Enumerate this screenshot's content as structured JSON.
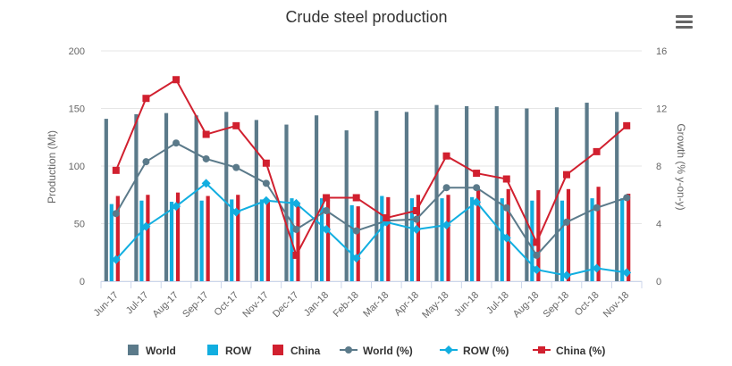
{
  "chart_data": {
    "type": "bar",
    "title": "Crude steel production",
    "categories": [
      "Jun-17",
      "Jul-17",
      "Aug-17",
      "Sep-17",
      "Oct-17",
      "Nov-17",
      "Dec-17",
      "Jan-18",
      "Feb-18",
      "Mar-18",
      "Apr-18",
      "May-18",
      "Jun-18",
      "Jul-18",
      "Aug-18",
      "Sep-18",
      "Oct-18",
      "Nov-18"
    ],
    "ylabel": "Production (Mt)",
    "ylabel_right": "Growth (% y-on-y)",
    "ylim": [
      0,
      200
    ],
    "ylim_right": [
      0,
      16
    ],
    "yticks": [
      "0",
      "50",
      "100",
      "150",
      "200"
    ],
    "yticks_right": [
      "0",
      "4",
      "8",
      "12",
      "16"
    ],
    "grid": true,
    "legend_position": "bottom",
    "bar_series": [
      {
        "name": "World",
        "color": "#5b7a8a",
        "values": [
          141,
          145,
          146,
          144,
          147,
          140,
          136,
          144,
          131,
          148,
          147,
          153,
          152,
          152,
          150,
          151,
          155,
          147
        ]
      },
      {
        "name": "ROW",
        "color": "#12aee0",
        "values": [
          67,
          70,
          69,
          70,
          71,
          71,
          72,
          72,
          66,
          74,
          72,
          72,
          73,
          72,
          70,
          70,
          72,
          72
        ]
      },
      {
        "name": "China",
        "color": "#d1202f",
        "values": [
          74,
          75,
          77,
          74,
          75,
          70,
          68,
          71,
          65,
          73,
          75,
          75,
          79,
          80,
          79,
          80,
          82,
          76
        ]
      }
    ],
    "line_series": [
      {
        "name": "World (%)",
        "color": "#5b7a8a",
        "marker": "circle",
        "values": [
          4.7,
          8.3,
          9.6,
          8.5,
          7.9,
          6.8,
          3.6,
          4.9,
          3.5,
          4.2,
          4.3,
          6.5,
          6.5,
          5.1,
          1.8,
          4.1,
          5.1,
          5.8
        ]
      },
      {
        "name": "ROW (%)",
        "color": "#12aee0",
        "marker": "diamond",
        "values": [
          1.5,
          3.8,
          5.2,
          6.8,
          4.8,
          5.6,
          5.4,
          3.6,
          1.6,
          4.1,
          3.6,
          3.9,
          5.5,
          3.0,
          0.8,
          0.4,
          0.9,
          0.6
        ]
      },
      {
        "name": "China (%)",
        "color": "#d1202f",
        "marker": "square",
        "values": [
          7.7,
          12.7,
          14.0,
          10.2,
          10.8,
          8.2,
          1.8,
          5.8,
          5.8,
          4.4,
          4.9,
          8.7,
          7.5,
          7.1,
          2.7,
          7.4,
          9.0,
          10.8
        ]
      }
    ]
  },
  "menu": {
    "icon": "hamburger-menu-icon"
  }
}
